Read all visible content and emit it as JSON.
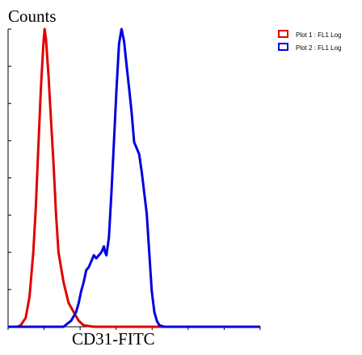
{
  "chart_data": {
    "type": "line",
    "ylabel": "Counts",
    "xlabel": "CD31-FITC",
    "x_scale": "log",
    "grid": false,
    "legend_position": "top-right",
    "series": [
      {
        "name": "Plot 1 : FL1 Log",
        "color": "#e00000",
        "points": [
          [
            0.0,
            0
          ],
          [
            0.035,
            0
          ],
          [
            0.05,
            0.005
          ],
          [
            0.07,
            0.03
          ],
          [
            0.085,
            0.1
          ],
          [
            0.1,
            0.25
          ],
          [
            0.11,
            0.4
          ],
          [
            0.12,
            0.6
          ],
          [
            0.13,
            0.8
          ],
          [
            0.14,
            0.95
          ],
          [
            0.145,
            1.0
          ],
          [
            0.15,
            0.97
          ],
          [
            0.16,
            0.85
          ],
          [
            0.17,
            0.7
          ],
          [
            0.18,
            0.55
          ],
          [
            0.19,
            0.38
          ],
          [
            0.2,
            0.25
          ],
          [
            0.22,
            0.15
          ],
          [
            0.24,
            0.08
          ],
          [
            0.26,
            0.05
          ],
          [
            0.28,
            0.02
          ],
          [
            0.3,
            0.005
          ],
          [
            0.34,
            0
          ],
          [
            1.0,
            0
          ]
        ]
      },
      {
        "name": "Plot 2 : FL1 Log",
        "color": "#0000e0",
        "points": [
          [
            0.0,
            0
          ],
          [
            0.22,
            0
          ],
          [
            0.25,
            0.02
          ],
          [
            0.27,
            0.05
          ],
          [
            0.28,
            0.08
          ],
          [
            0.29,
            0.12
          ],
          [
            0.3,
            0.15
          ],
          [
            0.31,
            0.19
          ],
          [
            0.32,
            0.2
          ],
          [
            0.33,
            0.22
          ],
          [
            0.34,
            0.24
          ],
          [
            0.35,
            0.23
          ],
          [
            0.36,
            0.24
          ],
          [
            0.37,
            0.25
          ],
          [
            0.38,
            0.27
          ],
          [
            0.385,
            0.25
          ],
          [
            0.39,
            0.24
          ],
          [
            0.4,
            0.3
          ],
          [
            0.41,
            0.45
          ],
          [
            0.42,
            0.62
          ],
          [
            0.43,
            0.8
          ],
          [
            0.44,
            0.95
          ],
          [
            0.45,
            1.0
          ],
          [
            0.46,
            0.96
          ],
          [
            0.47,
            0.88
          ],
          [
            0.48,
            0.8
          ],
          [
            0.49,
            0.72
          ],
          [
            0.5,
            0.62
          ],
          [
            0.51,
            0.6
          ],
          [
            0.52,
            0.58
          ],
          [
            0.53,
            0.52
          ],
          [
            0.54,
            0.45
          ],
          [
            0.55,
            0.38
          ],
          [
            0.56,
            0.25
          ],
          [
            0.57,
            0.12
          ],
          [
            0.58,
            0.05
          ],
          [
            0.59,
            0.02
          ],
          [
            0.6,
            0.005
          ],
          [
            0.62,
            0
          ],
          [
            1.0,
            0
          ]
        ]
      }
    ]
  }
}
